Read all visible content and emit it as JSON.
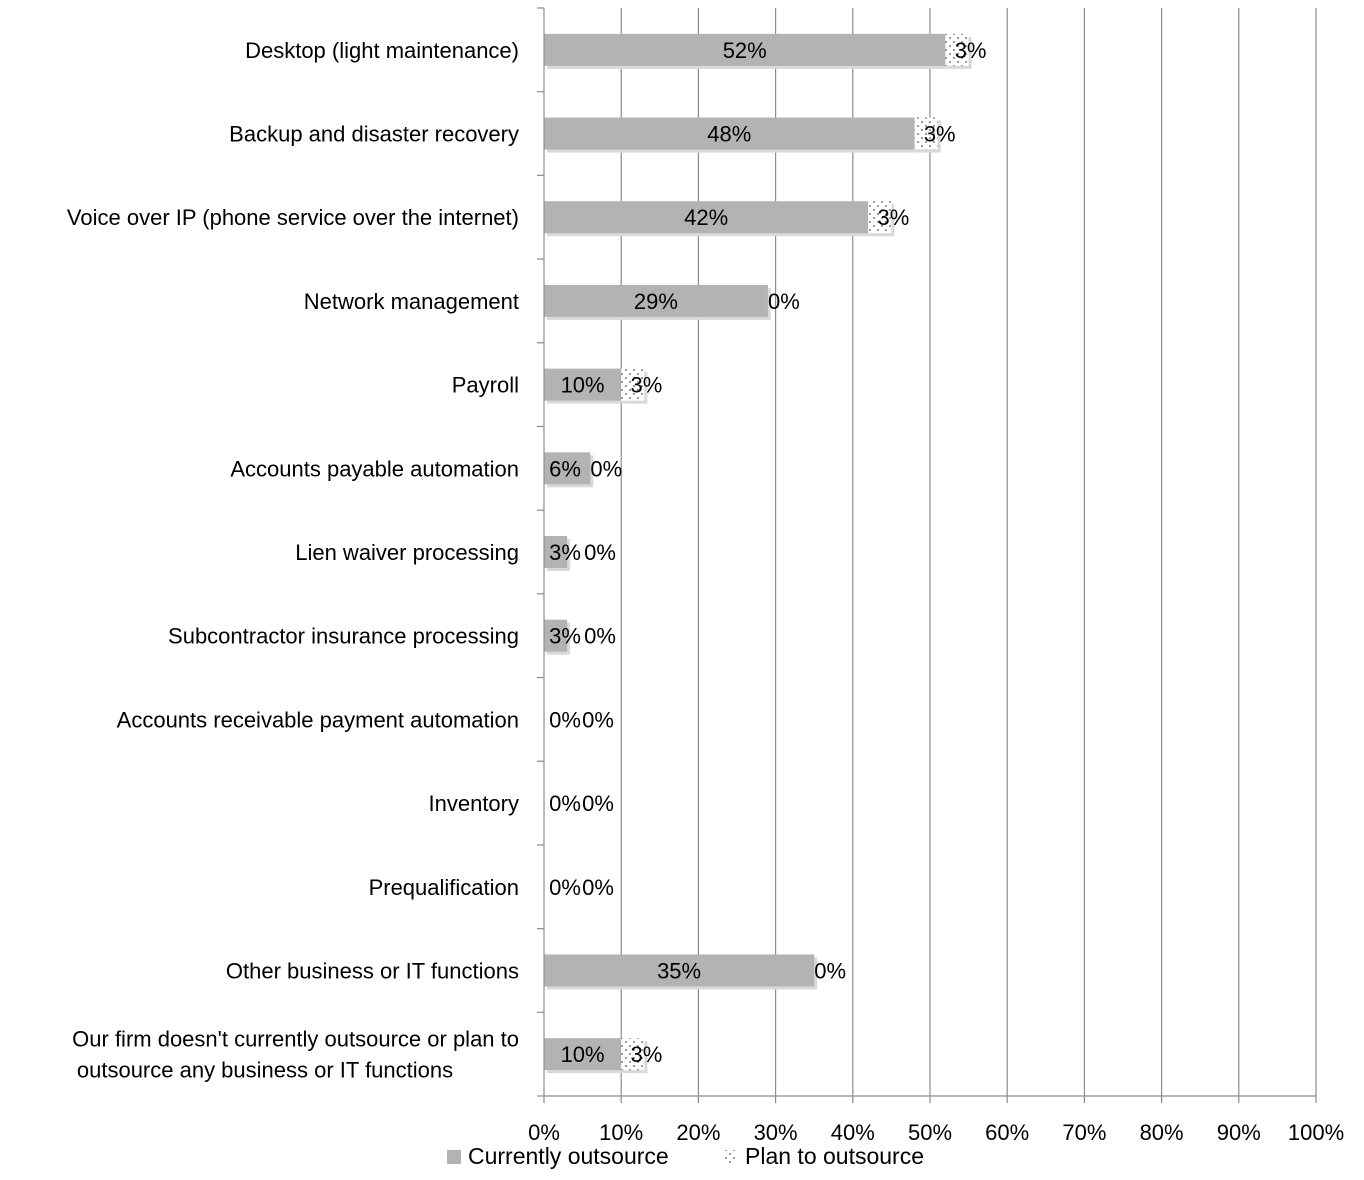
{
  "chart_data": {
    "type": "bar",
    "orientation": "horizontal",
    "stacked": true,
    "categories": [
      "Desktop (light maintenance)",
      "Backup and disaster recovery",
      "Voice over IP (phone service over the internet)",
      "Network management",
      "Payroll",
      "Accounts payable automation",
      "Lien waiver processing",
      "Subcontractor insurance processing",
      "Accounts receivable payment automation",
      "Inventory",
      "Prequalification",
      "Other business or IT functions",
      "Our firm doesn't currently outsource or plan to outsource any business or IT functions"
    ],
    "series": [
      {
        "name": "Currently outsource",
        "values": [
          52,
          48,
          42,
          29,
          10,
          6,
          3,
          3,
          0,
          0,
          0,
          35,
          10
        ],
        "labels": [
          "52%",
          "48%",
          "42%",
          "29%",
          "10%",
          "6%",
          "3%",
          "3%",
          "0%",
          "0%",
          "0%",
          "35%",
          "10%"
        ],
        "color": "#b3b3b3"
      },
      {
        "name": "Plan to outsource",
        "values": [
          3,
          3,
          3,
          0,
          3,
          0,
          0,
          0,
          0,
          0,
          0,
          0,
          3
        ],
        "labels": [
          "3%",
          "3%",
          "3%",
          "0%",
          "3%",
          "0%",
          "0%",
          "0%",
          "0%",
          "0%",
          "0%",
          "0%",
          "3%"
        ],
        "color": "#ffffff"
      }
    ],
    "xlim": [
      0,
      100
    ],
    "x_ticks": [
      0,
      10,
      20,
      30,
      40,
      50,
      60,
      70,
      80,
      90,
      100
    ],
    "x_tick_labels": [
      "0%",
      "10%",
      "20%",
      "30%",
      "40%",
      "50%",
      "60%",
      "70%",
      "80%",
      "90%",
      "100%"
    ],
    "grid": true,
    "legend_position": "bottom",
    "title": "",
    "xlabel": "",
    "ylabel": ""
  }
}
